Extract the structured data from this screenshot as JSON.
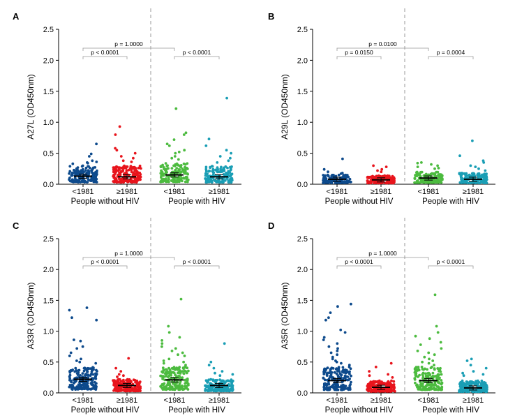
{
  "chart_data": [
    {
      "type": "scatter",
      "panel": "A",
      "ylabel": "A27L (OD450nm)",
      "ylim": [
        0,
        2.5
      ],
      "yticks": [
        "0.0",
        "0.5",
        "1.0",
        "1.5",
        "2.0",
        "2.5"
      ],
      "categories": [
        "<1981",
        "≥1981",
        "<1981",
        "≥1981"
      ],
      "groups": [
        "People without HIV",
        "People with HIV"
      ],
      "series": [
        {
          "category": "<1981",
          "group": "People without HIV",
          "color": "#0d4a8c",
          "median": 0.13,
          "n": 160,
          "bulk_max": 0.3,
          "outliers": [
            0.65,
            0.49,
            0.45,
            0.38,
            0.36,
            0.35,
            0.34,
            0.33
          ]
        },
        {
          "category": "≥1981",
          "group": "People without HIV",
          "color": "#e8141c",
          "median": 0.12,
          "n": 170,
          "bulk_max": 0.3,
          "outliers": [
            0.93,
            0.8,
            0.58,
            0.55,
            0.5,
            0.45,
            0.42,
            0.38,
            0.36
          ]
        },
        {
          "category": "<1981",
          "group": "People with HIV",
          "color": "#4cbb3f",
          "median": 0.15,
          "n": 150,
          "bulk_max": 0.35,
          "outliers": [
            1.22,
            0.83,
            0.8,
            0.72,
            0.65,
            0.62,
            0.55,
            0.52,
            0.5,
            0.45,
            0.42,
            0.4
          ]
        },
        {
          "category": "≥1981",
          "group": "People with HIV",
          "color": "#1a9eb5",
          "median": 0.12,
          "n": 150,
          "bulk_max": 0.3,
          "outliers": [
            1.39,
            0.73,
            0.62,
            0.55,
            0.5,
            0.45,
            0.42,
            0.38,
            0.35
          ]
        }
      ],
      "comparisons": [
        {
          "from": 0,
          "to": 1,
          "label": "p < 0.0001",
          "level": "low"
        },
        {
          "from": 2,
          "to": 3,
          "label": "p < 0.0001",
          "level": "low"
        },
        {
          "from": 0,
          "to": 2,
          "label": "p = 1.0000",
          "level": "high"
        }
      ]
    },
    {
      "type": "scatter",
      "panel": "B",
      "ylabel": "A29L (OD450nm)",
      "ylim": [
        0,
        2.5
      ],
      "yticks": [
        "0.0",
        "0.5",
        "1.0",
        "1.5",
        "2.0",
        "2.5"
      ],
      "categories": [
        "<1981",
        "≥1981",
        "<1981",
        "≥1981"
      ],
      "groups": [
        "People without HIV",
        "People with HIV"
      ],
      "series": [
        {
          "category": "<1981",
          "group": "People without HIV",
          "color": "#0d4a8c",
          "median": 0.08,
          "n": 140,
          "bulk_max": 0.15,
          "outliers": [
            0.41,
            0.24,
            0.2,
            0.18,
            0.17
          ]
        },
        {
          "category": "≥1981",
          "group": "People without HIV",
          "color": "#e8141c",
          "median": 0.07,
          "n": 150,
          "bulk_max": 0.14,
          "outliers": [
            0.3,
            0.28,
            0.24,
            0.22,
            0.2
          ]
        },
        {
          "category": "<1981",
          "group": "People with HIV",
          "color": "#4cbb3f",
          "median": 0.1,
          "n": 140,
          "bulk_max": 0.2,
          "outliers": [
            0.35,
            0.34,
            0.32,
            0.3,
            0.28,
            0.26,
            0.25
          ]
        },
        {
          "category": "≥1981",
          "group": "People with HIV",
          "color": "#1a9eb5",
          "median": 0.08,
          "n": 140,
          "bulk_max": 0.18,
          "outliers": [
            0.7,
            0.46,
            0.38,
            0.35,
            0.3,
            0.28,
            0.25,
            0.22
          ]
        }
      ],
      "comparisons": [
        {
          "from": 0,
          "to": 1,
          "label": "p = 0.0150",
          "level": "low"
        },
        {
          "from": 2,
          "to": 3,
          "label": "p = 0.0004",
          "level": "low"
        },
        {
          "from": 0,
          "to": 2,
          "label": "p = 0.0100",
          "level": "high"
        }
      ]
    },
    {
      "type": "scatter",
      "panel": "C",
      "ylabel": "A33R (OD450nm)",
      "ylim": [
        0,
        2.5
      ],
      "yticks": [
        "0.0",
        "0.5",
        "1.0",
        "1.5",
        "2.0",
        "2.5"
      ],
      "categories": [
        "<1981",
        "≥1981",
        "<1981",
        "≥1981"
      ],
      "groups": [
        "People without HIV",
        "People with HIV"
      ],
      "series": [
        {
          "category": "<1981",
          "group": "People without HIV",
          "color": "#0d4a8c",
          "median": 0.22,
          "n": 180,
          "bulk_max": 0.42,
          "outliers": [
            1.38,
            1.34,
            1.22,
            1.18,
            0.86,
            0.84,
            0.75,
            0.72,
            0.65,
            0.6,
            0.55,
            0.52,
            0.5,
            0.48
          ]
        },
        {
          "category": "≥1981",
          "group": "People without HIV",
          "color": "#e8141c",
          "median": 0.12,
          "n": 170,
          "bulk_max": 0.22,
          "outliers": [
            0.56,
            0.4,
            0.35,
            0.3,
            0.28,
            0.26
          ]
        },
        {
          "category": "<1981",
          "group": "People with HIV",
          "color": "#4cbb3f",
          "median": 0.21,
          "n": 180,
          "bulk_max": 0.42,
          "outliers": [
            1.52,
            1.08,
            0.98,
            0.9,
            0.85,
            0.8,
            0.75,
            0.72,
            0.68,
            0.65,
            0.62,
            0.6,
            0.55,
            0.52,
            0.5,
            0.48,
            0.45
          ]
        },
        {
          "category": "≥1981",
          "group": "People with HIV",
          "color": "#1a9eb5",
          "median": 0.12,
          "n": 170,
          "bulk_max": 0.22,
          "outliers": [
            0.8,
            0.5,
            0.45,
            0.4,
            0.35,
            0.32,
            0.3,
            0.28
          ]
        }
      ],
      "comparisons": [
        {
          "from": 0,
          "to": 1,
          "label": "p < 0.0001",
          "level": "low"
        },
        {
          "from": 2,
          "to": 3,
          "label": "p < 0.0001",
          "level": "low"
        },
        {
          "from": 0,
          "to": 2,
          "label": "p = 1.0000",
          "level": "high"
        }
      ]
    },
    {
      "type": "scatter",
      "panel": "D",
      "ylabel": "A35R (OD450nm)",
      "ylim": [
        0,
        2.5
      ],
      "yticks": [
        "0.0",
        "0.5",
        "1.0",
        "1.5",
        "2.0",
        "2.5"
      ],
      "categories": [
        "<1981",
        "≥1981",
        "<1981",
        "≥1981"
      ],
      "groups": [
        "People without HIV",
        "People with HIV"
      ],
      "series": [
        {
          "category": "<1981",
          "group": "People without HIV",
          "color": "#0d4a8c",
          "median": 0.2,
          "n": 180,
          "bulk_max": 0.42,
          "outliers": [
            1.44,
            1.4,
            1.3,
            1.22,
            1.18,
            1.02,
            0.98,
            0.9,
            0.86,
            0.8,
            0.75,
            0.72,
            0.68,
            0.65,
            0.62,
            0.58,
            0.55,
            0.52,
            0.5,
            0.48,
            0.45
          ]
        },
        {
          "category": "≥1981",
          "group": "People without HIV",
          "color": "#e8141c",
          "median": 0.09,
          "n": 170,
          "bulk_max": 0.2,
          "outliers": [
            0.48,
            0.42,
            0.35,
            0.3,
            0.28,
            0.25
          ]
        },
        {
          "category": "<1981",
          "group": "People with HIV",
          "color": "#4cbb3f",
          "median": 0.2,
          "n": 180,
          "bulk_max": 0.42,
          "outliers": [
            1.59,
            1.08,
            0.98,
            0.92,
            0.88,
            0.82,
            0.78,
            0.72,
            0.68,
            0.65,
            0.62,
            0.58,
            0.55,
            0.52,
            0.5,
            0.48,
            0.45
          ]
        },
        {
          "category": "≥1981",
          "group": "People with HIV",
          "color": "#1a9eb5",
          "median": 0.08,
          "n": 170,
          "bulk_max": 0.2,
          "outliers": [
            0.55,
            0.52,
            0.45,
            0.4,
            0.35,
            0.32,
            0.3,
            0.28
          ]
        }
      ],
      "comparisons": [
        {
          "from": 0,
          "to": 1,
          "label": "p < 0.0001",
          "level": "low"
        },
        {
          "from": 2,
          "to": 3,
          "label": "p < 0.0001",
          "level": "low"
        },
        {
          "from": 0,
          "to": 2,
          "label": "p = 1.0000",
          "level": "high"
        }
      ]
    }
  ]
}
